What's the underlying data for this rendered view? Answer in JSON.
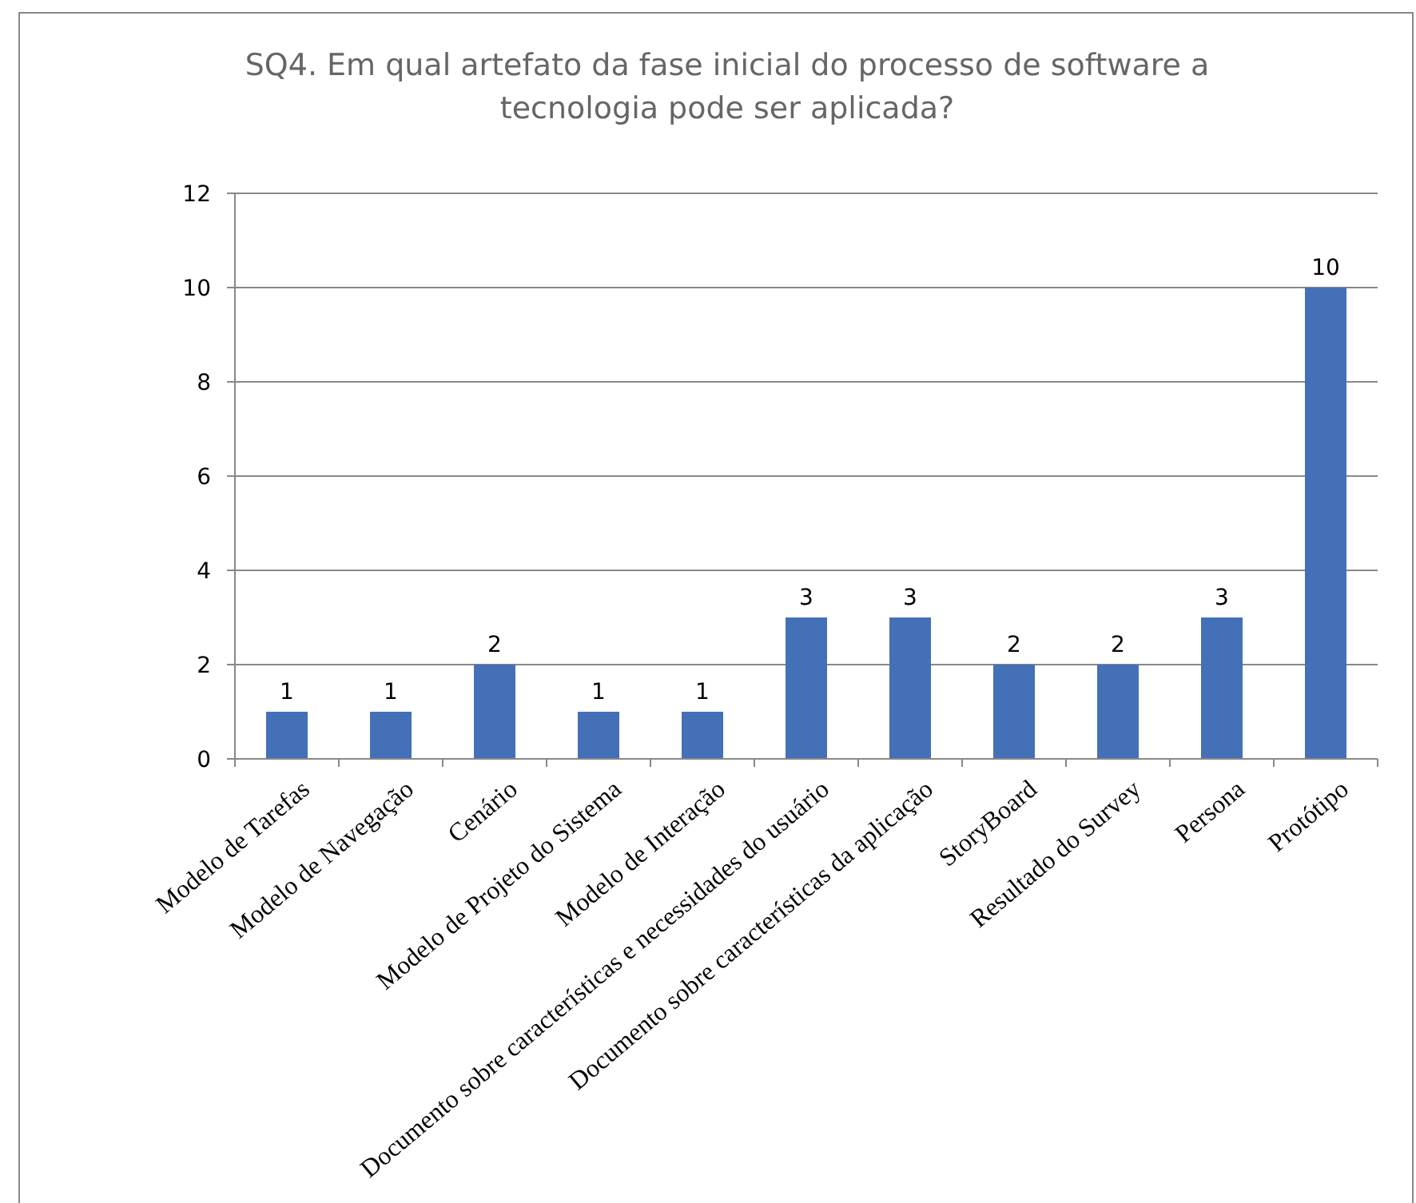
{
  "chart_data": {
    "type": "bar",
    "title": "SQ4. Em qual artefato da fase inicial do processo de software a tecnologia pode ser aplicada?",
    "categories": [
      "Modelo de Tarefas",
      "Modelo de Navegação",
      "Cenário",
      "Modelo de Projeto do Sistema",
      "Modelo de Interação",
      "Documento sobre características e necessidades do usuário",
      "Documento sobre características da aplicação",
      "StoryBoard",
      "Resultado do Survey",
      "Persona",
      "Protótipo"
    ],
    "values": [
      1,
      1,
      2,
      1,
      1,
      3,
      3,
      2,
      2,
      3,
      10
    ],
    "color": "#4470b8",
    "ylim": [
      0,
      12
    ],
    "yticks": [
      0,
      2,
      4,
      6,
      8,
      10,
      12
    ],
    "grid": "y",
    "data_labels": true
  }
}
